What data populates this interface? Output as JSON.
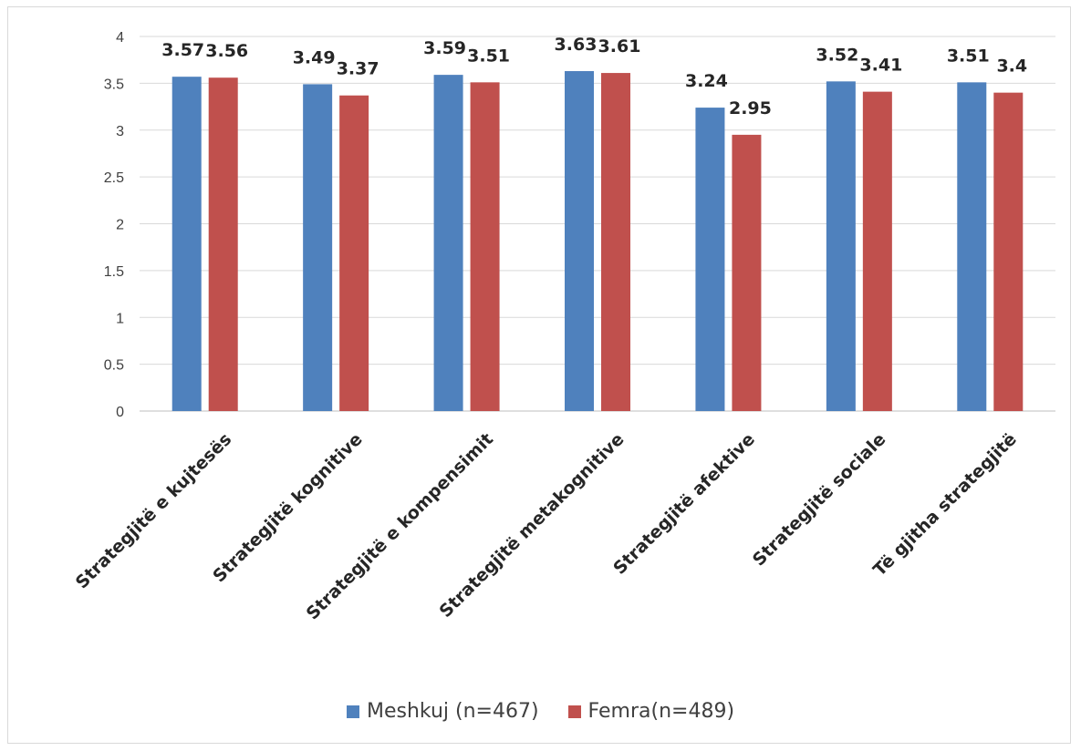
{
  "chart_data": {
    "type": "bar",
    "categories": [
      "Strategjitë e kujtesës",
      "Strategjitë kognitive",
      "Strategjitë e kompensimit",
      "Strategjitë  metakognitive",
      "Strategjitë afektive",
      "Strategjitë sociale",
      "Të gjitha strategjitë"
    ],
    "series": [
      {
        "name": "Meshkuj (n=467)",
        "color": "#4f81bd",
        "values": [
          3.57,
          3.49,
          3.59,
          3.63,
          3.24,
          3.52,
          3.51
        ],
        "labels": [
          "3.57",
          "3.49",
          "3.59",
          "3.63",
          "3.24",
          "3.52",
          "3.51"
        ]
      },
      {
        "name": "Femra(n=489)",
        "color": "#c0504d",
        "values": [
          3.56,
          3.37,
          3.51,
          3.61,
          2.95,
          3.41,
          3.4
        ],
        "labels": [
          "3.56",
          "3.37",
          "3.51",
          "3.61",
          "2.95",
          "3.41",
          "3.4"
        ]
      }
    ],
    "ylim": [
      0,
      4
    ],
    "yticks": [
      "0",
      "0.5",
      "1",
      "1.5",
      "2",
      "2.5",
      "3",
      "3.5",
      "4"
    ],
    "grid": true,
    "legend_position": "bottom"
  }
}
